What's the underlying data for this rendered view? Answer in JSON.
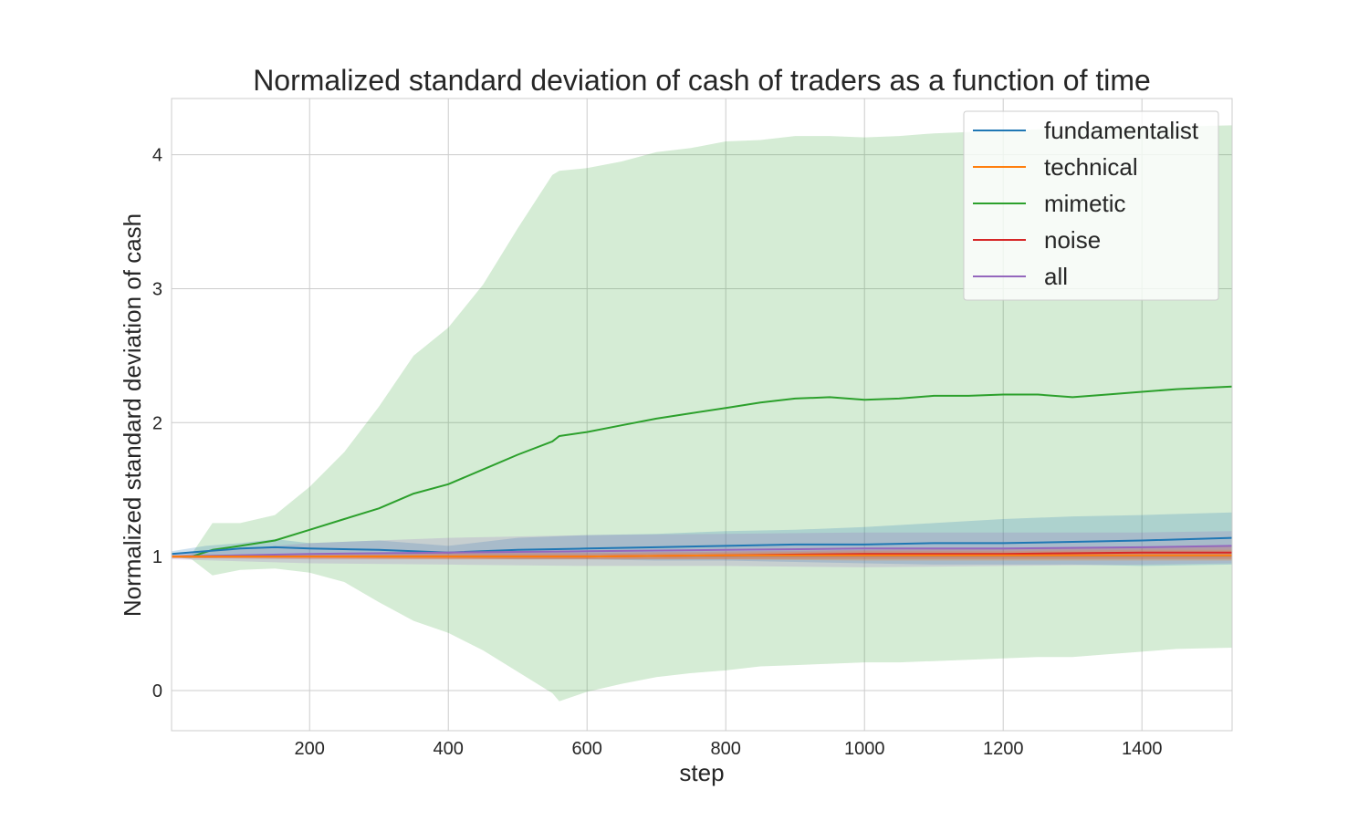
{
  "chart_data": {
    "type": "line",
    "title": "Normalized standard deviation of cash of traders as a function of time",
    "xlabel": "step",
    "ylabel": "Normalized standard deviation of cash",
    "xlim": [
      1,
      1530
    ],
    "ylim": [
      -0.3,
      4.42
    ],
    "xticks": [
      200,
      400,
      600,
      800,
      1000,
      1200,
      1400
    ],
    "yticks": [
      0,
      1,
      2,
      3,
      4
    ],
    "grid": true,
    "legend_position": "top-right",
    "series": [
      {
        "name": "fundamentalist",
        "color": "#1f77b4",
        "x": [
          1,
          50,
          100,
          150,
          200,
          300,
          400,
          500,
          600,
          700,
          800,
          900,
          1000,
          1100,
          1200,
          1300,
          1400,
          1530
        ],
        "mean": [
          1.02,
          1.04,
          1.06,
          1.07,
          1.06,
          1.05,
          1.03,
          1.05,
          1.06,
          1.07,
          1.08,
          1.09,
          1.09,
          1.1,
          1.1,
          1.11,
          1.12,
          1.14
        ],
        "lower": [
          1.0,
          0.99,
          1.0,
          1.0,
          1.0,
          0.99,
          0.99,
          0.98,
          0.98,
          0.97,
          0.97,
          0.96,
          0.95,
          0.94,
          0.94,
          0.94,
          0.93,
          0.94
        ],
        "upper": [
          1.04,
          1.08,
          1.1,
          1.13,
          1.1,
          1.12,
          1.08,
          1.14,
          1.16,
          1.17,
          1.19,
          1.2,
          1.22,
          1.25,
          1.28,
          1.3,
          1.31,
          1.33
        ]
      },
      {
        "name": "technical",
        "color": "#ff7f0e",
        "x": [
          1,
          200,
          400,
          600,
          800,
          1000,
          1200,
          1400,
          1530
        ],
        "mean": [
          1.0,
          1.0,
          1.0,
          1.0,
          1.01,
          1.01,
          1.01,
          1.01,
          1.01
        ],
        "lower": [
          0.99,
          0.99,
          0.98,
          0.98,
          0.98,
          0.97,
          0.97,
          0.97,
          0.97
        ],
        "upper": [
          1.01,
          1.01,
          1.02,
          1.02,
          1.03,
          1.04,
          1.04,
          1.05,
          1.05
        ]
      },
      {
        "name": "mimetic",
        "color": "#2ca02c",
        "x": [
          1,
          30,
          60,
          100,
          150,
          200,
          250,
          300,
          350,
          400,
          450,
          500,
          550,
          560,
          600,
          650,
          700,
          750,
          800,
          850,
          900,
          950,
          1000,
          1050,
          1100,
          1150,
          1200,
          1250,
          1300,
          1350,
          1400,
          1450,
          1530
        ],
        "mean": [
          1.0,
          1.0,
          1.05,
          1.08,
          1.12,
          1.2,
          1.28,
          1.36,
          1.47,
          1.54,
          1.65,
          1.76,
          1.86,
          1.9,
          1.93,
          1.98,
          2.03,
          2.07,
          2.11,
          2.15,
          2.18,
          2.19,
          2.17,
          2.18,
          2.2,
          2.2,
          2.21,
          2.21,
          2.19,
          2.21,
          2.23,
          2.25,
          2.27
        ],
        "lower": [
          1.0,
          0.98,
          0.86,
          0.9,
          0.91,
          0.88,
          0.81,
          0.66,
          0.52,
          0.43,
          0.3,
          0.14,
          -0.02,
          -0.08,
          -0.01,
          0.05,
          0.1,
          0.13,
          0.15,
          0.18,
          0.19,
          0.2,
          0.21,
          0.21,
          0.22,
          0.23,
          0.24,
          0.25,
          0.25,
          0.27,
          0.29,
          0.31,
          0.32
        ],
        "upper": [
          1.0,
          1.02,
          1.25,
          1.25,
          1.31,
          1.52,
          1.78,
          2.12,
          2.5,
          2.71,
          3.03,
          3.45,
          3.85,
          3.88,
          3.9,
          3.95,
          4.02,
          4.05,
          4.1,
          4.11,
          4.14,
          4.14,
          4.13,
          4.14,
          4.16,
          4.17,
          4.18,
          4.19,
          4.19,
          4.2,
          4.2,
          4.21,
          4.22
        ]
      },
      {
        "name": "noise",
        "color": "#d62728",
        "x": [
          1,
          200,
          400,
          600,
          800,
          1000,
          1200,
          1400,
          1530
        ],
        "mean": [
          1.0,
          1.0,
          1.0,
          1.0,
          1.01,
          1.02,
          1.02,
          1.03,
          1.03
        ],
        "lower": [
          0.99,
          0.98,
          0.98,
          0.98,
          0.98,
          0.98,
          0.98,
          0.98,
          0.98
        ],
        "upper": [
          1.01,
          1.02,
          1.03,
          1.03,
          1.04,
          1.05,
          1.06,
          1.07,
          1.08
        ]
      },
      {
        "name": "all",
        "color": "#9467bd",
        "x": [
          1,
          200,
          400,
          600,
          800,
          1000,
          1200,
          1400,
          1530
        ],
        "mean": [
          1.0,
          1.02,
          1.03,
          1.04,
          1.05,
          1.06,
          1.06,
          1.07,
          1.08
        ],
        "lower": [
          0.98,
          0.95,
          0.94,
          0.93,
          0.93,
          0.92,
          0.93,
          0.94,
          0.95
        ],
        "upper": [
          1.02,
          1.1,
          1.14,
          1.16,
          1.17,
          1.18,
          1.18,
          1.18,
          1.19
        ]
      }
    ]
  }
}
